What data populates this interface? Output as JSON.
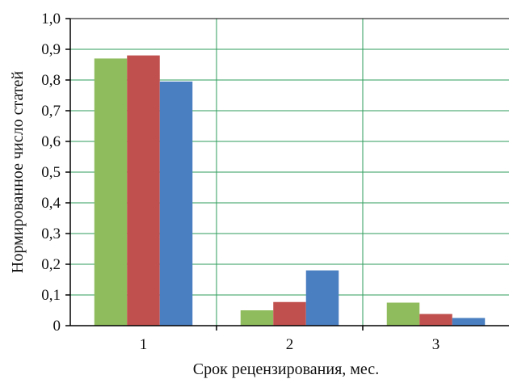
{
  "chart_data": {
    "type": "bar",
    "xlabel": "Срок рецензирования, мес.",
    "ylabel": "Нормированное число статей",
    "categories": [
      "1",
      "2",
      "3"
    ],
    "ylim": [
      0,
      1.0
    ],
    "yticks": [
      "0",
      "0,1",
      "0,2",
      "0,3",
      "0,4",
      "0,5",
      "0,6",
      "0,7",
      "0,8",
      "0,9",
      "1,0"
    ],
    "grid": true,
    "series": [
      {
        "color": "#8fbc5c",
        "values": [
          0.87,
          0.05,
          0.075
        ]
      },
      {
        "color": "#c0504d",
        "values": [
          0.88,
          0.077,
          0.038
        ]
      },
      {
        "color": "#4a7fc1",
        "values": [
          0.795,
          0.18,
          0.025
        ]
      }
    ]
  },
  "colors": {
    "grid": "#2e9e5b",
    "axis": "#000000"
  }
}
